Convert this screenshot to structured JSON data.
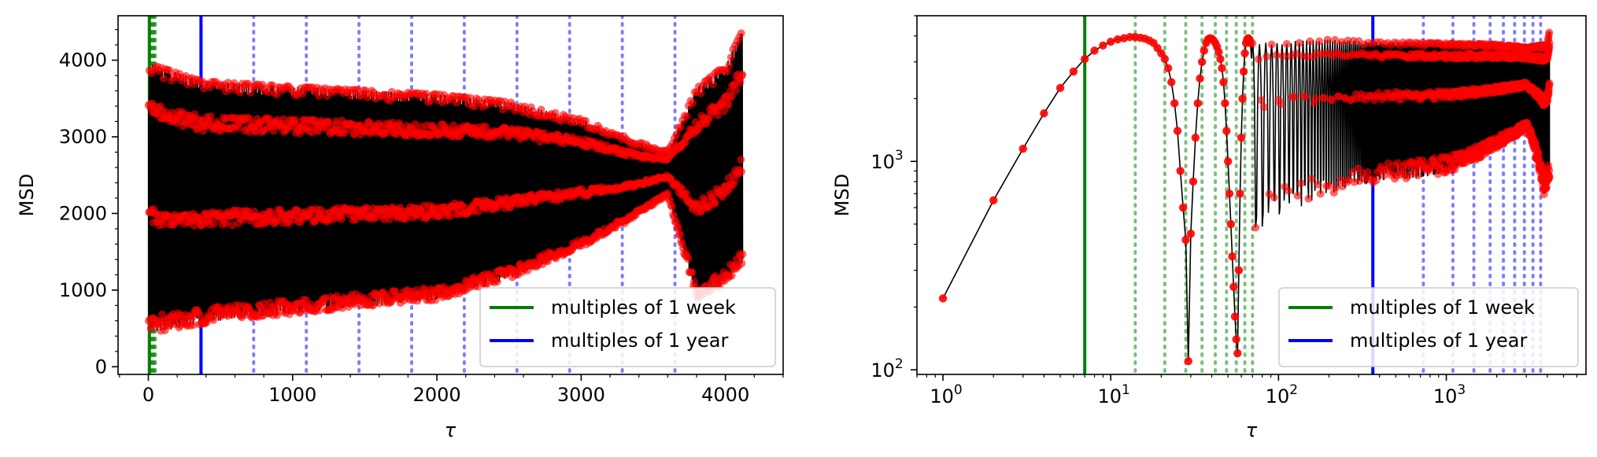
{
  "chart_data": [
    {
      "id": "left",
      "type": "line",
      "xlabel": "τ",
      "ylabel": "MSD",
      "x_scale": "linear",
      "y_scale": "linear",
      "xlim": [
        -210,
        4400
      ],
      "ylim": [
        -100,
        4580
      ],
      "xticks": [
        0,
        1000,
        2000,
        3000,
        4000
      ],
      "xtick_labels": [
        "0",
        "1000",
        "2000",
        "3000",
        "4000"
      ],
      "yticks": [
        0,
        1000,
        2000,
        3000,
        4000
      ],
      "ytick_labels": [
        "0",
        "1000",
        "2000",
        "3000",
        "4000"
      ],
      "grid": false,
      "legend_position": "lower right",
      "series": [
        {
          "role": "msd",
          "color": "#ff0000",
          "line_color": "#000000",
          "marker": "circle",
          "x_range": [
            1,
            4120
          ],
          "envelope_upper": [
            [
              1,
              3950
            ],
            [
              30,
              3900
            ],
            [
              365,
              3690
            ],
            [
              1000,
              3620
            ],
            [
              2000,
              3520
            ],
            [
              2500,
              3420
            ],
            [
              3000,
              3200
            ],
            [
              3400,
              2900
            ],
            [
              3600,
              2800
            ],
            [
              3800,
              3600
            ],
            [
              4000,
              3900
            ],
            [
              4120,
              4350
            ]
          ],
          "envelope_lower": [
            [
              1,
              230
            ],
            [
              100,
              250
            ],
            [
              500,
              400
            ],
            [
              1000,
              500
            ],
            [
              1500,
              600
            ],
            [
              2000,
              700
            ],
            [
              2500,
              1000
            ],
            [
              3000,
              1450
            ],
            [
              3300,
              1800
            ],
            [
              3600,
              2200
            ],
            [
              3800,
              700
            ],
            [
              4000,
              900
            ],
            [
              4120,
              1150
            ]
          ]
        }
      ],
      "reference_lines": [
        {
          "name": "multiples of 1 week",
          "color": "#008000",
          "solid_at": [
            7
          ],
          "dotted_at": [
            14,
            21,
            28,
            35,
            42,
            49
          ]
        },
        {
          "name": "multiples of 1 year",
          "color": "#0000ff",
          "solid_at": [
            365
          ],
          "dotted_at": [
            730,
            1095,
            1460,
            1825,
            2190,
            2555,
            2920,
            3285,
            3650
          ]
        }
      ],
      "legend": [
        "multiples of 1 week",
        "multiples of 1 year"
      ]
    },
    {
      "id": "right",
      "type": "line",
      "xlabel": "τ",
      "ylabel": "MSD",
      "x_scale": "log",
      "y_scale": "log",
      "xlim": [
        0.7,
        6800
      ],
      "ylim": [
        95,
        5000
      ],
      "xticks": [
        1,
        10,
        100,
        1000
      ],
      "xtick_labels": [
        [
          "10",
          "0"
        ],
        [
          "10",
          "1"
        ],
        [
          "10",
          "2"
        ],
        [
          "10",
          "3"
        ]
      ],
      "yticks": [
        100,
        1000
      ],
      "ytick_labels": [
        [
          "10",
          "2"
        ],
        [
          "10",
          "3"
        ]
      ],
      "grid": false,
      "legend_position": "lower right",
      "series": [
        {
          "role": "msd",
          "color": "#ff0000",
          "line_color": "#000000",
          "marker": "circle",
          "points": [
            [
              1,
              220
            ],
            [
              2,
              650
            ],
            [
              3,
              1150
            ],
            [
              4,
              1700
            ],
            [
              5,
              2250
            ],
            [
              6,
              2700
            ],
            [
              7,
              3100
            ],
            [
              8,
              3400
            ],
            [
              9,
              3600
            ],
            [
              10,
              3750
            ],
            [
              11,
              3850
            ],
            [
              12,
              3900
            ],
            [
              13,
              3950
            ],
            [
              14,
              3950
            ],
            [
              15,
              3920
            ],
            [
              16,
              3880
            ],
            [
              17,
              3800
            ],
            [
              18,
              3700
            ],
            [
              19,
              3500
            ],
            [
              20,
              3300
            ],
            [
              21,
              3100
            ],
            [
              22,
              2800
            ],
            [
              23,
              2400
            ],
            [
              24,
              1900
            ],
            [
              25,
              1400
            ],
            [
              26,
              900
            ],
            [
              27,
              600
            ],
            [
              28,
              420
            ],
            [
              29,
              110
            ],
            [
              30,
              450
            ],
            [
              31,
              800
            ],
            [
              32,
              1300
            ],
            [
              33,
              1900
            ],
            [
              34,
              2500
            ],
            [
              35,
              3000
            ],
            [
              36,
              3400
            ],
            [
              37,
              3700
            ],
            [
              38,
              3850
            ],
            [
              39,
              3900
            ],
            [
              40,
              3880
            ],
            [
              41,
              3800
            ],
            [
              42,
              3700
            ],
            [
              43,
              3550
            ],
            [
              44,
              3350
            ],
            [
              45,
              3100
            ],
            [
              46,
              2800
            ],
            [
              47,
              2400
            ],
            [
              48,
              1900
            ],
            [
              49,
              1400
            ],
            [
              50,
              1000
            ],
            [
              51,
              700
            ],
            [
              52,
              500
            ],
            [
              53,
              350
            ],
            [
              54,
              250
            ],
            [
              55,
              180
            ],
            [
              56,
              140
            ],
            [
              57,
              120
            ],
            [
              58,
              300
            ],
            [
              59,
              700
            ],
            [
              60,
              1300
            ],
            [
              61,
              2000
            ],
            [
              62,
              2700
            ],
            [
              63,
              3300
            ],
            [
              64,
              3700
            ],
            [
              65,
              3850
            ],
            [
              66,
              3900
            ],
            [
              67,
              3850
            ],
            [
              68,
              3700
            ]
          ],
          "x_range_dense": [
            68,
            4120
          ],
          "envelope_upper": [
            [
              68,
              3700
            ],
            [
              200,
              3800
            ],
            [
              365,
              3700
            ],
            [
              1000,
              3650
            ],
            [
              2000,
              3600
            ],
            [
              3000,
              3500
            ],
            [
              4000,
              3600
            ],
            [
              4120,
              4200
            ]
          ],
          "envelope_lower": [
            [
              68,
              200
            ],
            [
              100,
              350
            ],
            [
              200,
              500
            ],
            [
              365,
              600
            ],
            [
              1000,
              700
            ],
            [
              2000,
              1000
            ],
            [
              3000,
              1300
            ],
            [
              3800,
              500
            ],
            [
              4120,
              600
            ]
          ]
        }
      ],
      "reference_lines": [
        {
          "name": "multiples of 1 week",
          "color": "#008000",
          "solid_at": [
            7
          ],
          "dotted_at": [
            14,
            21,
            28,
            35,
            42,
            49,
            56,
            63,
            70
          ]
        },
        {
          "name": "multiples of 1 year",
          "color": "#0000ff",
          "solid_at": [
            365
          ],
          "dotted_at": [
            730,
            1095,
            1460,
            1825,
            2190,
            2555,
            2920,
            3285,
            3650
          ]
        }
      ],
      "legend": [
        "multiples of 1 week",
        "multiples of 1 year"
      ]
    }
  ]
}
